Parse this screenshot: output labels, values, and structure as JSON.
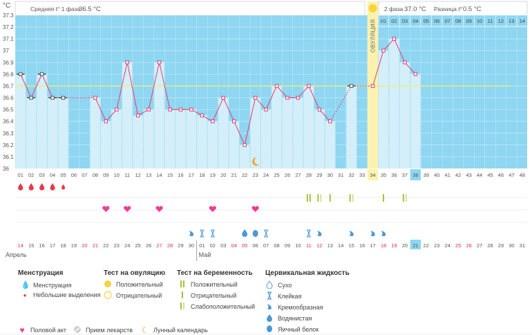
{
  "header": {
    "unit": "°C",
    "phase1_label": "Средняя t° 1 фаза",
    "phase1_value": "36.5 °C",
    "phase2_label": "2 фаза",
    "phase2_value": "37.0 °C",
    "diff_label": "Разница t°",
    "diff_value": "0.5 °C",
    "ovulation_label": "ОВУЛЯЦИЯ"
  },
  "chart_data": {
    "type": "line",
    "title": "",
    "ylabel": "°C",
    "ylim": [
      36.0,
      37.3
    ],
    "yticks": [
      "36",
      "36.1",
      "36.2",
      "36.3",
      "36.4",
      "36.5",
      "36.6",
      "36.7",
      "36.8",
      "36.9",
      "37",
      "37.1",
      "37.2",
      "37.3"
    ],
    "coverline": 36.7,
    "ovulation_day": 34,
    "today_day": 38,
    "days": [
      "01",
      "02",
      "03",
      "04",
      "05",
      "06",
      "07",
      "08",
      "09",
      "10",
      "11",
      "12",
      "13",
      "14",
      "15",
      "16",
      "17",
      "18",
      "19",
      "20",
      "21",
      "22",
      "23",
      "24",
      "25",
      "26",
      "27",
      "28",
      "29",
      "30",
      "31",
      "32",
      "33",
      "34",
      "35",
      "36",
      "37",
      "38",
      "39",
      "40",
      "41",
      "42",
      "43",
      "44",
      "45",
      "46",
      "47",
      "48"
    ],
    "top_days": [
      "01",
      "02",
      "03",
      "04",
      "05",
      "06",
      "07",
      "08",
      "09",
      "10",
      "11",
      "12",
      "13",
      "14"
    ],
    "temperatures": [
      36.8,
      36.6,
      36.8,
      36.6,
      36.6,
      null,
      null,
      36.6,
      36.4,
      36.5,
      36.9,
      36.45,
      36.5,
      36.9,
      36.5,
      36.5,
      36.5,
      36.45,
      36.4,
      36.6,
      36.4,
      36.2,
      36.6,
      36.5,
      36.7,
      36.6,
      36.6,
      36.7,
      36.5,
      36.4,
      null,
      36.7,
      null,
      36.7,
      37.0,
      37.1,
      36.9,
      36.8,
      null,
      null,
      null,
      null,
      null,
      null,
      null,
      null,
      null,
      null
    ],
    "series": [
      {
        "name": "Базальная температура",
        "values": [
          36.8,
          36.6,
          36.8,
          36.6,
          36.6,
          null,
          null,
          36.6,
          36.4,
          36.5,
          36.9,
          36.45,
          36.5,
          36.9,
          36.5,
          36.5,
          36.5,
          36.45,
          36.4,
          36.6,
          36.4,
          36.2,
          36.6,
          36.5,
          36.7,
          36.6,
          36.6,
          36.7,
          36.5,
          36.4,
          null,
          36.7,
          null,
          36.7,
          37.0,
          37.1,
          36.9,
          36.8,
          null,
          null,
          null,
          null,
          null,
          null,
          null,
          null,
          null,
          null
        ]
      }
    ],
    "excluded_days": [
      1,
      2,
      3,
      4,
      5,
      32
    ],
    "dates": [
      "14",
      "15",
      "16",
      "17",
      "18",
      "19",
      "20",
      "21",
      "22",
      "23",
      "24",
      "25",
      "26",
      "27",
      "28",
      "29",
      "30",
      "01",
      "02",
      "03",
      "04",
      "05",
      "06",
      "07",
      "08",
      "09",
      "10",
      "11",
      "12",
      "13",
      "14",
      "15",
      "16",
      "17",
      "18",
      "19",
      "20",
      "21",
      "22",
      "23",
      "24",
      "25",
      "26",
      "27",
      "28",
      "29",
      "30",
      "31"
    ],
    "weekend_days": [
      1,
      7,
      8,
      14,
      15,
      21,
      22,
      28,
      29,
      35,
      36,
      42,
      43
    ],
    "months": [
      "Апрель",
      "Май"
    ],
    "menstruation": {
      "full": [
        1,
        2,
        3,
        4
      ],
      "light": [
        5
      ]
    },
    "intercourse": [
      9,
      11,
      14,
      19,
      23
    ],
    "moon_day": 23,
    "pregnancy_tests": [
      {
        "day": 28,
        "kind": "positive"
      },
      {
        "day": 29,
        "kind": "weak"
      },
      {
        "day": 30,
        "kind": "negative"
      },
      {
        "day": 32,
        "kind": "weak"
      },
      {
        "day": 35,
        "kind": "negative"
      },
      {
        "day": 37,
        "kind": "weak"
      }
    ],
    "cervical": [
      {
        "day": 23,
        "kind": "egg_white"
      },
      {
        "day": 24,
        "kind": "sticky"
      },
      {
        "day": 17,
        "kind": "creamy"
      },
      {
        "day": 18,
        "kind": "sticky"
      },
      {
        "day": 19,
        "kind": "sticky"
      },
      {
        "day": 22,
        "kind": "watery"
      },
      {
        "day": 28,
        "kind": "sticky"
      },
      {
        "day": 29,
        "kind": "creamy"
      },
      {
        "day": 32,
        "kind": "creamy"
      },
      {
        "day": 34,
        "kind": "creamy"
      },
      {
        "day": 35,
        "kind": "creamy"
      }
    ]
  },
  "legend": {
    "menstruation": {
      "title": "Менструация",
      "items": [
        "Менструация",
        "Небольшие выделения"
      ]
    },
    "ovulation_test": {
      "title": "Тест на овуляцию",
      "items": [
        "Положительный",
        "Отрицательный"
      ]
    },
    "pregnancy_test": {
      "title": "Тест на беременность",
      "items": [
        "Положительный",
        "Отрицательный",
        "Слабоположительный"
      ]
    },
    "cervical": {
      "title": "Цервикальная жидкость",
      "items": [
        "Сухо",
        "Клейкая",
        "Кремообразная",
        "Водянистая",
        "Яичный белок"
      ]
    },
    "bottom": [
      "Половой акт",
      "Прием лекарств",
      "Лунный календарь"
    ]
  }
}
